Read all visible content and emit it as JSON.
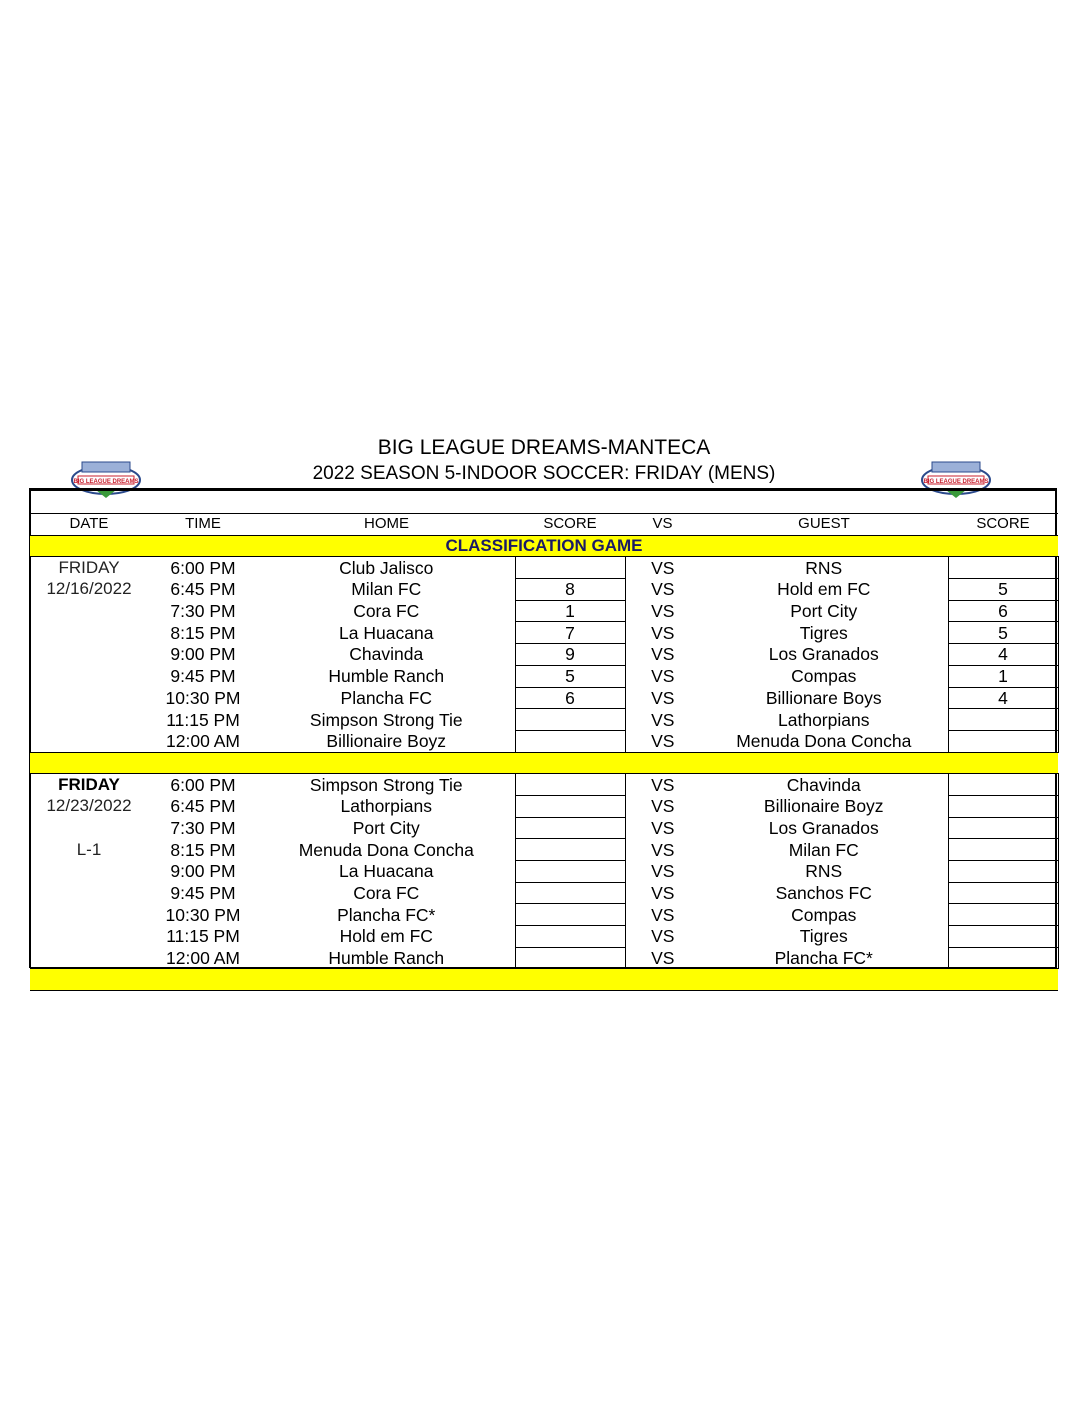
{
  "header": {
    "title": "BIG LEAGUE DREAMS-MANTECA",
    "subtitle": "2022 SEASON 5-INDOOR SOCCER: FRIDAY (MENS)",
    "logo_text": "BIG LEAGUE DREAMS"
  },
  "columns": {
    "date": "DATE",
    "time": "TIME",
    "home": "HOME",
    "score": "SCORE",
    "vs": "VS",
    "guest": "GUEST",
    "score2": "SCORE"
  },
  "banner": "CLASSIFICATION GAME",
  "days": [
    {
      "date_lines": [
        "FRIDAY",
        "12/16/2022",
        ""
      ],
      "games": [
        {
          "time": "6:00 PM",
          "home": "Club Jalisco",
          "home_score": "",
          "vs": "VS",
          "guest": "RNS",
          "guest_score": ""
        },
        {
          "time": "6:45 PM",
          "home": "Milan FC",
          "home_score": "8",
          "vs": "VS",
          "guest": "Hold em FC",
          "guest_score": "5"
        },
        {
          "time": "7:30 PM",
          "home": "Cora FC",
          "home_score": "1",
          "vs": "VS",
          "guest": "Port City",
          "guest_score": "6"
        },
        {
          "time": "8:15 PM",
          "home": "La Huacana",
          "home_score": "7",
          "vs": "VS",
          "guest": "Tigres",
          "guest_score": "5"
        },
        {
          "time": "9:00 PM",
          "home": "Chavinda",
          "home_score": "9",
          "vs": "VS",
          "guest": "Los Granados",
          "guest_score": "4"
        },
        {
          "time": "9:45 PM",
          "home": "Humble Ranch",
          "home_score": "5",
          "vs": "VS",
          "guest": "Compas",
          "guest_score": "1"
        },
        {
          "time": "10:30 PM",
          "home": "Plancha FC",
          "home_score": "6",
          "vs": "VS",
          "guest": "Billionare Boys",
          "guest_score": "4"
        },
        {
          "time": "11:15 PM",
          "home": "Simpson Strong Tie",
          "home_score": "",
          "vs": "VS",
          "guest": "Lathorpians",
          "guest_score": ""
        },
        {
          "time": "12:00 AM",
          "home": "Billionaire Boyz",
          "home_score": "",
          "vs": "VS",
          "guest": "Menuda Dona Concha",
          "guest_score": ""
        }
      ]
    },
    {
      "date_lines": [
        "FRIDAY",
        "12/23/2022",
        "",
        "L-1"
      ],
      "games": [
        {
          "time": "6:00 PM",
          "home": "Simpson Strong Tie",
          "home_score": "",
          "vs": "VS",
          "guest": "Chavinda",
          "guest_score": ""
        },
        {
          "time": "6:45 PM",
          "home": "Lathorpians",
          "home_score": "",
          "vs": "VS",
          "guest": "Billionaire Boyz",
          "guest_score": ""
        },
        {
          "time": "7:30 PM",
          "home": "Port City",
          "home_score": "",
          "vs": "VS",
          "guest": "Los Granados",
          "guest_score": ""
        },
        {
          "time": "8:15 PM",
          "home": "Menuda Dona Concha",
          "home_score": "",
          "vs": "VS",
          "guest": "Milan FC",
          "guest_score": ""
        },
        {
          "time": "9:00 PM",
          "home": "La Huacana",
          "home_score": "",
          "vs": "VS",
          "guest": "RNS",
          "guest_score": ""
        },
        {
          "time": "9:45 PM",
          "home": "Cora FC",
          "home_score": "",
          "vs": "VS",
          "guest": "Sanchos FC",
          "guest_score": ""
        },
        {
          "time": "10:30 PM",
          "home": "Plancha FC*",
          "home_score": "",
          "vs": "VS",
          "guest": "Compas",
          "guest_score": ""
        },
        {
          "time": "11:15 PM",
          "home": "Hold em FC",
          "home_score": "",
          "vs": "VS",
          "guest": "Tigres",
          "guest_score": ""
        },
        {
          "time": "12:00 AM",
          "home": "Humble Ranch",
          "home_score": "",
          "vs": "VS",
          "guest": "Plancha FC*",
          "guest_score": ""
        }
      ]
    }
  ],
  "colors": {
    "banner": "#ffff00",
    "logo_red": "#c8202f",
    "logo_blue": "#2b4a8c"
  }
}
